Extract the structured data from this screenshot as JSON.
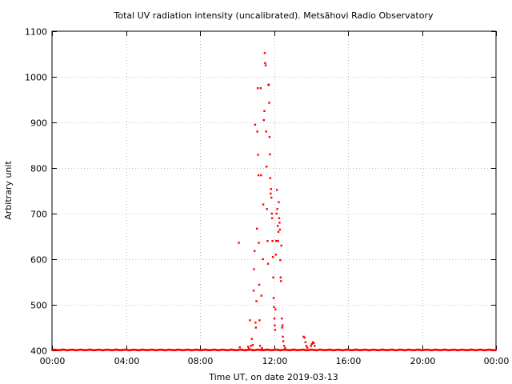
{
  "chart_data": {
    "type": "scatter",
    "title": "Total UV radiation intensity (uncalibrated). Metsähovi Radio Observatory",
    "xlabel": "Time UT, on date 2019-03-13",
    "ylabel": "Arbitrary unit",
    "x_unit": "hours UT",
    "xlim": [
      0,
      24
    ],
    "ylim": [
      400,
      1100
    ],
    "x_ticks": [
      0,
      4,
      8,
      12,
      16,
      20,
      24
    ],
    "x_tick_labels": [
      "00:00",
      "04:00",
      "08:00",
      "12:00",
      "16:00",
      "20:00",
      "00:00"
    ],
    "y_ticks": [
      400,
      500,
      600,
      700,
      800,
      900,
      1000,
      1100
    ],
    "y_tick_labels": [
      "400",
      "500",
      "600",
      "700",
      "800",
      "900",
      "1000",
      "1100"
    ],
    "grid": true,
    "legend": "none",
    "marker_color": "#ff0000",
    "baseline": {
      "value": 401,
      "from": 0,
      "to": 24,
      "note": "dense sequence of readings at about 400-402 across the whole day"
    },
    "series": [
      {
        "points": [
          [
            10.1,
            636
          ],
          [
            10.15,
            407
          ],
          [
            10.6,
            408
          ],
          [
            10.65,
            404
          ],
          [
            10.7,
            466
          ],
          [
            10.75,
            410
          ],
          [
            10.8,
            425
          ],
          [
            10.85,
            412
          ],
          [
            10.9,
            531
          ],
          [
            10.92,
            578
          ],
          [
            10.95,
            618
          ],
          [
            10.98,
            895
          ],
          [
            11.0,
            461
          ],
          [
            11.02,
            450
          ],
          [
            11.05,
            508
          ],
          [
            11.08,
            667
          ],
          [
            11.1,
            880
          ],
          [
            11.12,
            975
          ],
          [
            11.14,
            829
          ],
          [
            11.16,
            784
          ],
          [
            11.18,
            636
          ],
          [
            11.2,
            544
          ],
          [
            11.22,
            466
          ],
          [
            11.25,
            410
          ],
          [
            11.28,
            975
          ],
          [
            11.3,
            784
          ],
          [
            11.32,
            520
          ],
          [
            11.35,
            405
          ],
          [
            11.4,
            600
          ],
          [
            11.42,
            720
          ],
          [
            11.45,
            905
          ],
          [
            11.48,
            925
          ],
          [
            11.5,
            1052
          ],
          [
            11.52,
            1030
          ],
          [
            11.55,
            1025
          ],
          [
            11.58,
            880
          ],
          [
            11.6,
            803
          ],
          [
            11.62,
            710
          ],
          [
            11.65,
            640
          ],
          [
            11.68,
            590
          ],
          [
            11.7,
            982
          ],
          [
            11.72,
            983
          ],
          [
            11.74,
            943
          ],
          [
            11.76,
            868
          ],
          [
            11.78,
            830
          ],
          [
            11.8,
            778
          ],
          [
            11.82,
            744
          ],
          [
            11.84,
            754
          ],
          [
            11.86,
            735
          ],
          [
            11.88,
            700
          ],
          [
            11.9,
            690
          ],
          [
            11.92,
            640
          ],
          [
            11.94,
            605
          ],
          [
            11.96,
            560
          ],
          [
            11.98,
            515
          ],
          [
            12.0,
            495
          ],
          [
            12.02,
            470
          ],
          [
            12.04,
            455
          ],
          [
            12.06,
            445
          ],
          [
            12.08,
            490
          ],
          [
            12.1,
            610
          ],
          [
            12.12,
            640
          ],
          [
            12.14,
            700
          ],
          [
            12.16,
            752
          ],
          [
            12.18,
            710
          ],
          [
            12.2,
            673
          ],
          [
            12.22,
            640
          ],
          [
            12.24,
            660
          ],
          [
            12.26,
            725
          ],
          [
            12.28,
            690
          ],
          [
            12.3,
            680
          ],
          [
            12.32,
            665
          ],
          [
            12.34,
            598
          ],
          [
            12.36,
            560
          ],
          [
            12.38,
            552
          ],
          [
            12.4,
            630
          ],
          [
            12.42,
            470
          ],
          [
            12.44,
            450
          ],
          [
            12.46,
            455
          ],
          [
            12.48,
            430
          ],
          [
            12.5,
            420
          ],
          [
            12.55,
            410
          ],
          [
            12.6,
            405
          ],
          [
            13.6,
            430
          ],
          [
            13.65,
            428
          ],
          [
            13.7,
            418
          ],
          [
            13.75,
            410
          ],
          [
            13.8,
            406
          ],
          [
            14.0,
            410
          ],
          [
            14.05,
            414
          ],
          [
            14.1,
            418
          ],
          [
            14.15,
            416
          ],
          [
            14.2,
            410
          ]
        ]
      }
    ]
  }
}
